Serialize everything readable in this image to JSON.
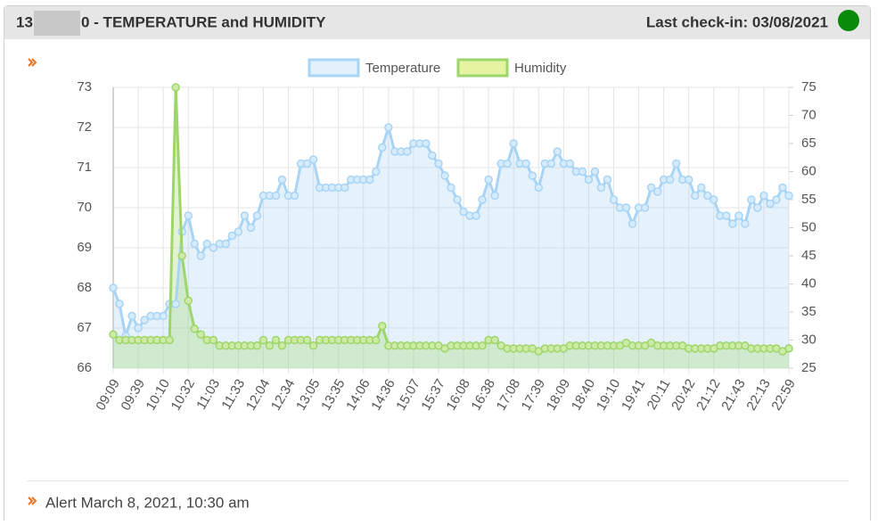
{
  "header": {
    "title_start": "13",
    "title_end": "0 - TEMPERATURE and HUMIDITY",
    "checkin": "Last check-in: 03/08/2021"
  },
  "chart_data": {
    "type": "line",
    "categories": [
      "09:09",
      null,
      null,
      null,
      "09:39",
      null,
      null,
      null,
      "10:10",
      null,
      null,
      null,
      "10:32",
      null,
      null,
      null,
      "11:03",
      null,
      null,
      null,
      "11:33",
      null,
      null,
      null,
      "12:04",
      null,
      null,
      null,
      "12:34",
      null,
      null,
      null,
      "13:05",
      null,
      null,
      null,
      "13:35",
      null,
      null,
      null,
      "14:06",
      null,
      null,
      null,
      "14:36",
      null,
      null,
      null,
      "15:07",
      null,
      null,
      null,
      "15:37",
      null,
      null,
      null,
      "16:08",
      null,
      null,
      null,
      "16:38",
      null,
      null,
      null,
      "17:08",
      null,
      null,
      null,
      "17:39",
      null,
      null,
      null,
      "18:09",
      null,
      null,
      null,
      "18:40",
      null,
      null,
      null,
      "19:10",
      null,
      null,
      null,
      "19:41",
      null,
      null,
      null,
      "20:11",
      null,
      null,
      null,
      "20:42",
      null,
      null,
      null,
      "21:12",
      null,
      null,
      null,
      "21:43",
      null,
      null,
      null,
      "22:13",
      null,
      null,
      null,
      "22:59"
    ],
    "series": [
      {
        "name": "Temperature",
        "color": "#a8d4f5",
        "axis": "y",
        "values": [
          68.0,
          67.6,
          66.8,
          67.3,
          67.0,
          67.2,
          67.3,
          67.3,
          67.3,
          67.6,
          67.6,
          69.4,
          69.8,
          69.1,
          68.8,
          69.1,
          69.0,
          69.1,
          69.1,
          69.3,
          69.4,
          69.8,
          69.5,
          69.8,
          70.3,
          70.3,
          70.3,
          70.7,
          70.3,
          70.3,
          71.1,
          71.1,
          71.2,
          70.5,
          70.5,
          70.5,
          70.5,
          70.5,
          70.7,
          70.7,
          70.7,
          70.7,
          70.9,
          71.5,
          72.0,
          71.4,
          71.4,
          71.4,
          71.6,
          71.6,
          71.6,
          71.3,
          71.1,
          70.8,
          70.5,
          70.2,
          69.9,
          69.8,
          69.8,
          70.2,
          70.7,
          70.3,
          71.1,
          71.1,
          71.6,
          71.1,
          71.1,
          70.8,
          70.5,
          71.1,
          71.1,
          71.4,
          71.1,
          71.1,
          70.9,
          70.9,
          70.7,
          70.9,
          70.5,
          70.7,
          70.2,
          70.0,
          70.0,
          69.6,
          70.0,
          70.0,
          70.5,
          70.4,
          70.7,
          70.7,
          71.1,
          70.7,
          70.7,
          70.3,
          70.5,
          70.3,
          70.2,
          69.8,
          69.8,
          69.6,
          69.8,
          69.6,
          70.2,
          70.0,
          70.3,
          70.1,
          70.2,
          70.5,
          70.3
        ]
      },
      {
        "name": "Humidity",
        "color": "#9ed66b",
        "axis": "y2",
        "values": [
          31,
          30,
          30,
          30,
          30,
          30,
          30,
          30,
          30,
          30,
          75,
          45,
          37,
          32,
          31,
          30,
          30,
          29,
          29,
          29,
          29,
          29,
          29,
          29,
          30,
          29,
          30,
          29,
          30,
          30,
          30,
          30,
          29,
          30,
          30,
          30,
          30,
          30,
          30,
          30,
          30,
          30,
          30,
          32.5,
          29,
          29,
          29,
          29,
          29,
          29,
          29,
          29,
          29,
          28.5,
          29,
          29,
          29,
          29,
          29,
          29,
          30,
          30,
          29,
          28.5,
          28.5,
          28.5,
          28.5,
          28.5,
          28,
          28.5,
          28.5,
          28.5,
          28.5,
          29,
          29,
          29,
          29,
          29,
          29,
          29,
          29,
          29,
          29.5,
          29,
          29,
          29,
          29.5,
          29,
          29,
          29,
          29,
          29,
          28.5,
          28.5,
          28.5,
          28.5,
          28.5,
          29,
          29,
          29,
          29,
          29,
          28.5,
          28.5,
          28.5,
          28.5,
          28.5,
          28,
          28.5
        ]
      }
    ],
    "ylim": [
      66,
      73
    ],
    "yticks": [
      66,
      67,
      68,
      69,
      70,
      71,
      72,
      73
    ],
    "y2lim": [
      25,
      75
    ],
    "y2ticks": [
      25,
      30,
      35,
      40,
      45,
      50,
      55,
      60,
      65,
      70,
      75
    ],
    "grid": true,
    "legend": "top"
  },
  "footer": {
    "alert": "Alert March 8, 2021, 10:30 am"
  }
}
